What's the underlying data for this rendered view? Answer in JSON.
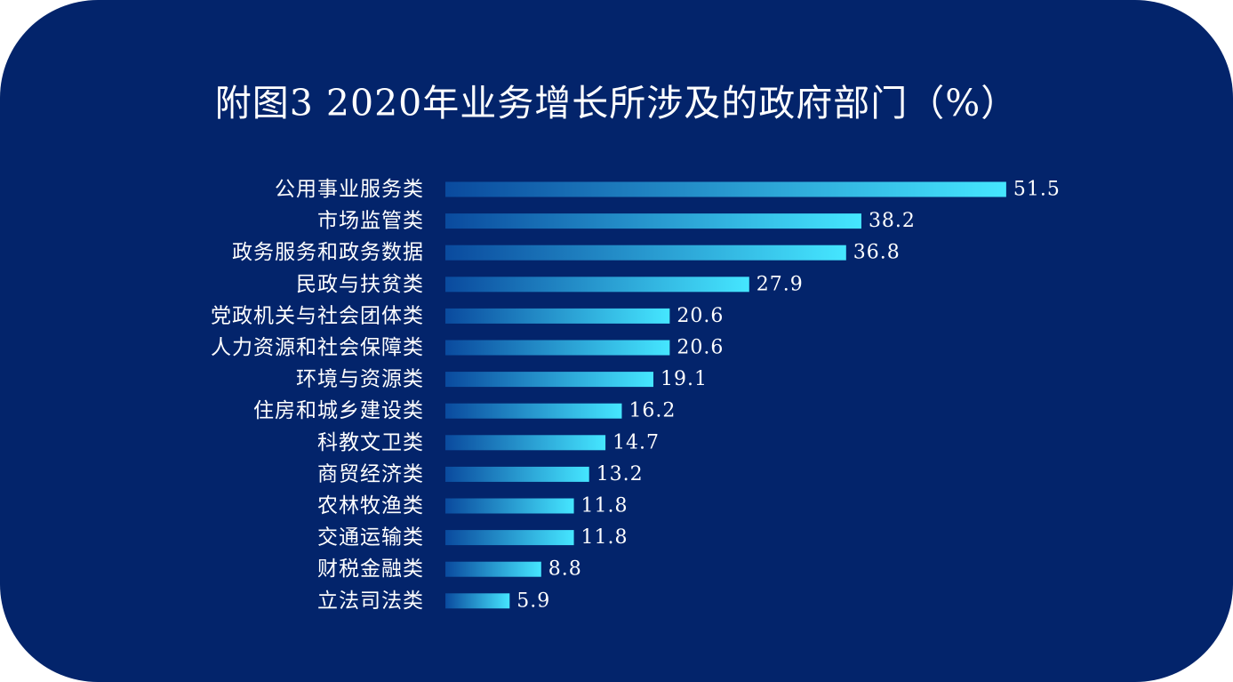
{
  "title": "附图3 2020年业务增长所涉及的政府部门（%）",
  "colors": {
    "background": "#03246b",
    "bar_start": "#0a4a9e",
    "bar_end": "#45e6ff",
    "text": "#ffffff"
  },
  "chart_data": {
    "type": "bar",
    "orientation": "horizontal",
    "title": "附图3 2020年业务增长所涉及的政府部门（%）",
    "xlabel": "",
    "ylabel": "",
    "xlim": [
      0,
      55
    ],
    "grid": false,
    "categories": [
      "公用事业服务类",
      "市场监管类",
      "政务服务和政务数据",
      "民政与扶贫类",
      "党政机关与社会团体类",
      "人力资源和社会保障类",
      "环境与资源类",
      "住房和城乡建设类",
      "科教文卫类",
      "商贸经济类",
      "农林牧渔类",
      "交通运输类",
      "财税金融类",
      "立法司法类"
    ],
    "values": [
      51.5,
      38.2,
      36.8,
      27.9,
      20.6,
      20.6,
      19.1,
      16.2,
      14.7,
      13.2,
      11.8,
      11.8,
      8.8,
      5.9
    ],
    "value_labels": [
      "51.5",
      "38.2",
      "36.8",
      "27.9",
      "20.6",
      "20.6",
      "19.1",
      "16.2",
      "14.7",
      "13.2",
      "11.8",
      "11.8",
      "8.8",
      "5.9"
    ]
  }
}
